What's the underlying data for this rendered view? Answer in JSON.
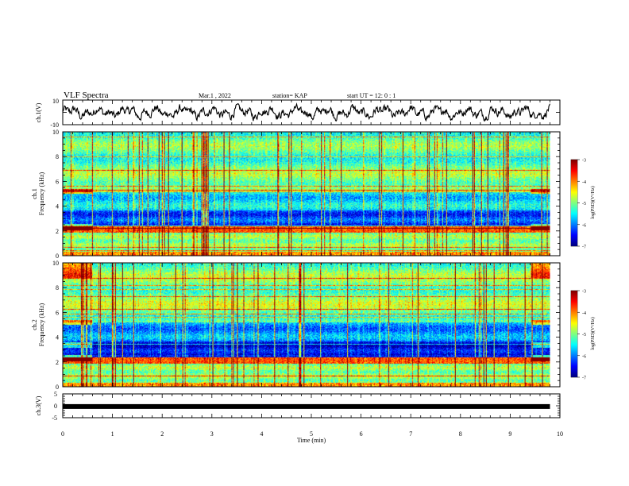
{
  "header": {
    "title": "VLF Spectra",
    "date": "Mar.1 , 2022",
    "station": "station= KAP",
    "start": "start UT = 12: 0 : 1"
  },
  "chart_data": [
    {
      "type": "line",
      "panel": "ch1-waveform",
      "ylabel": "ch.1(V)",
      "ylim": [
        -10,
        10
      ],
      "yticks": [
        "10",
        "-10"
      ],
      "xlim": [
        0,
        10
      ],
      "series_color": "#000000",
      "description_values": "continuous noisy waveform",
      "x_end": 9.8,
      "amplitude_range": [
        -7,
        7
      ]
    },
    {
      "type": "heatmap",
      "panel": "ch1-spectrogram",
      "ylabel": "ch.1 Frequency (kHz)",
      "ylabel_line1": "ch.1",
      "ylabel_line2": "Frequency (kHz)",
      "ylim": [
        0,
        10
      ],
      "yticks": [
        "0",
        "2",
        "4",
        "6",
        "8",
        "10"
      ],
      "xlim": [
        0,
        10
      ],
      "x_end": 9.8,
      "colorbar": {
        "label": "log(PSD)(V²/Hz)",
        "range": [
          -7,
          -3
        ],
        "ticks": [
          "-3",
          "-4",
          "-5",
          "-6",
          "-7"
        ]
      }
    },
    {
      "type": "heatmap",
      "panel": "ch2-spectrogram",
      "ylabel": "ch.2 Frequency (kHz)",
      "ylabel_line1": "ch.2",
      "ylabel_line2": "Frequency (kHz)",
      "ylim": [
        0,
        10
      ],
      "yticks": [
        "0",
        "2",
        "4",
        "6",
        "8",
        "10"
      ],
      "xlim": [
        0,
        10
      ],
      "x_end": 9.8,
      "colorbar": {
        "label": "log(PSD)(V²/Hz)",
        "range": [
          -7,
          -3
        ],
        "ticks": [
          "-3",
          "-4",
          "-5",
          "-6",
          "-7"
        ]
      }
    },
    {
      "type": "line",
      "panel": "ch3-waveform",
      "ylabel": "ch.3(V)",
      "ylim": [
        -5,
        5
      ],
      "yticks": [
        "5",
        "0",
        "-5"
      ],
      "xlim": [
        0,
        10
      ],
      "x_end": 9.8,
      "level": -0.3,
      "xlabel": "Time (min)",
      "xticks": [
        "0",
        "1",
        "2",
        "3",
        "4",
        "5",
        "6",
        "7",
        "8",
        "9",
        "10"
      ]
    }
  ]
}
